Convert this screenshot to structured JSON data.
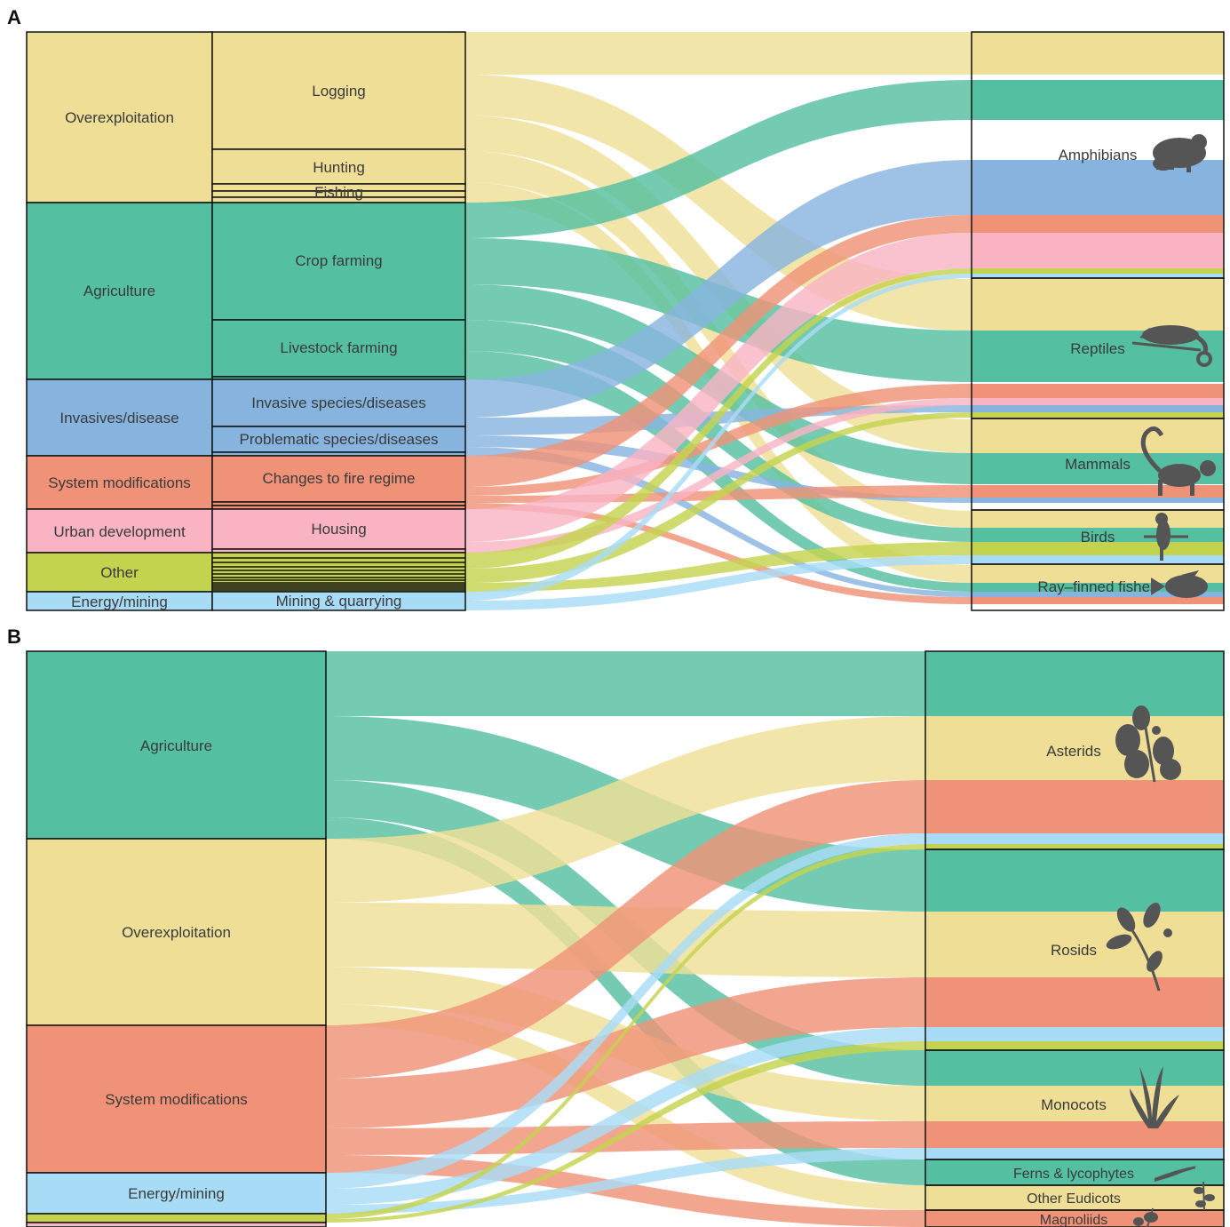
{
  "colors": {
    "overexploitation": "#efdf96",
    "agriculture": "#55c0a1",
    "invasives": "#87b4df",
    "system": "#ef9277",
    "urban": "#f9b3c3",
    "other": "#c4d34e",
    "energy": "#a8dcf6"
  },
  "panelA": {
    "letter": "A",
    "threats": [
      {
        "key": "overexploitation",
        "label": "Overexploitation"
      },
      {
        "key": "agriculture",
        "label": "Agriculture"
      },
      {
        "key": "invasives",
        "label": "Invasives/disease"
      },
      {
        "key": "system",
        "label": "System modifications"
      },
      {
        "key": "urban",
        "label": "Urban development"
      },
      {
        "key": "other",
        "label": "Other"
      },
      {
        "key": "energy",
        "label": "Energy/mining"
      }
    ],
    "subthreats": [
      {
        "label": "Logging"
      },
      {
        "label": "Hunting"
      },
      {
        "label": "Fishing"
      },
      {
        "label": "Crop farming"
      },
      {
        "label": "Livestock farming"
      },
      {
        "label": "Invasive species/diseases"
      },
      {
        "label": "Problematic species/diseases"
      },
      {
        "label": "Changes to fire regime"
      },
      {
        "label": "Housing"
      },
      {
        "label": "Mining & quarrying"
      }
    ],
    "taxa": [
      {
        "label": "Amphibians",
        "icon": "frog-icon"
      },
      {
        "label": "Reptiles",
        "icon": "chameleon-icon"
      },
      {
        "label": "Mammals",
        "icon": "lemur-icon"
      },
      {
        "label": "Birds",
        "icon": "parrot-icon"
      },
      {
        "label": "Ray–finned fishes",
        "icon": "fish-icon"
      }
    ]
  },
  "panelB": {
    "letter": "B",
    "threats": [
      {
        "key": "agriculture",
        "label": "Agriculture"
      },
      {
        "key": "overexploitation",
        "label": "Overexploitation"
      },
      {
        "key": "system",
        "label": "System modifications"
      },
      {
        "key": "energy",
        "label": "Energy/mining"
      }
    ],
    "taxa": [
      {
        "label": "Asterids",
        "icon": "asterid-plant-icon"
      },
      {
        "label": "Rosids",
        "icon": "rosid-plant-icon"
      },
      {
        "label": "Monocots",
        "icon": "monocot-plant-icon"
      },
      {
        "label": "Ferns & lycophytes",
        "icon": "fern-icon"
      },
      {
        "label": "Other Eudicots",
        "icon": "eudicot-plant-icon"
      },
      {
        "label": "Magnoliids",
        "icon": "magnoliid-plant-icon"
      }
    ]
  }
}
